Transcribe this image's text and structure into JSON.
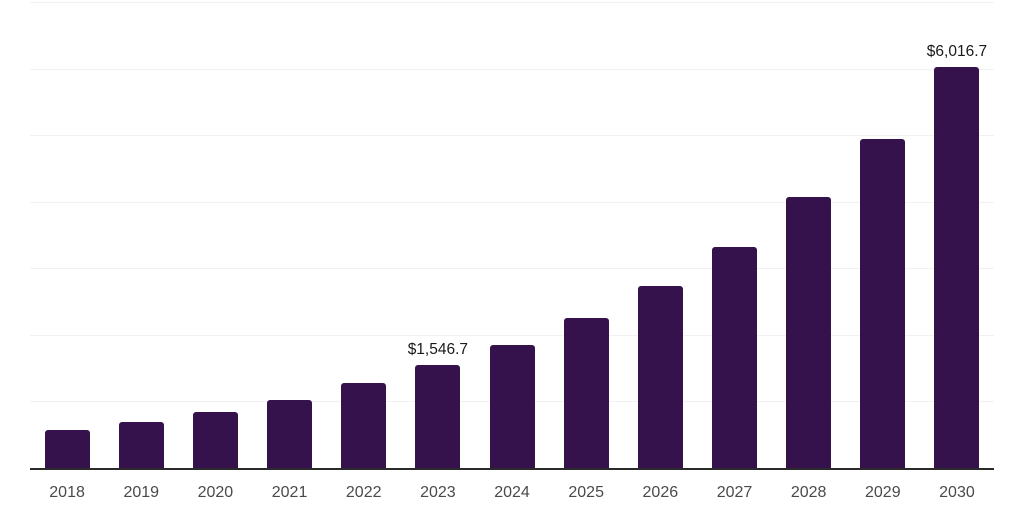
{
  "chart_data": {
    "type": "bar",
    "title": "",
    "xlabel": "",
    "ylabel": "",
    "categories": [
      "2018",
      "2019",
      "2020",
      "2021",
      "2022",
      "2023",
      "2024",
      "2025",
      "2026",
      "2027",
      "2028",
      "2029",
      "2030"
    ],
    "values": [
      575,
      690,
      845,
      1025,
      1280,
      1546.7,
      1855,
      2250,
      2730,
      3315,
      4070,
      4935,
      6016.7
    ],
    "data_labels": {
      "2023": "$1,546.7",
      "2030": "$6,016.7"
    },
    "ylim": [
      0,
      7000
    ],
    "gridline_step": 1000,
    "grid": "horizontal",
    "legend": "none"
  },
  "colors": {
    "bar": "#36124d",
    "axis": "#2b2b2b",
    "gridline": "#f1f1f3",
    "tick_label": "#4a4a4a",
    "data_label": "#1a1a1a",
    "background": "#ffffff"
  }
}
